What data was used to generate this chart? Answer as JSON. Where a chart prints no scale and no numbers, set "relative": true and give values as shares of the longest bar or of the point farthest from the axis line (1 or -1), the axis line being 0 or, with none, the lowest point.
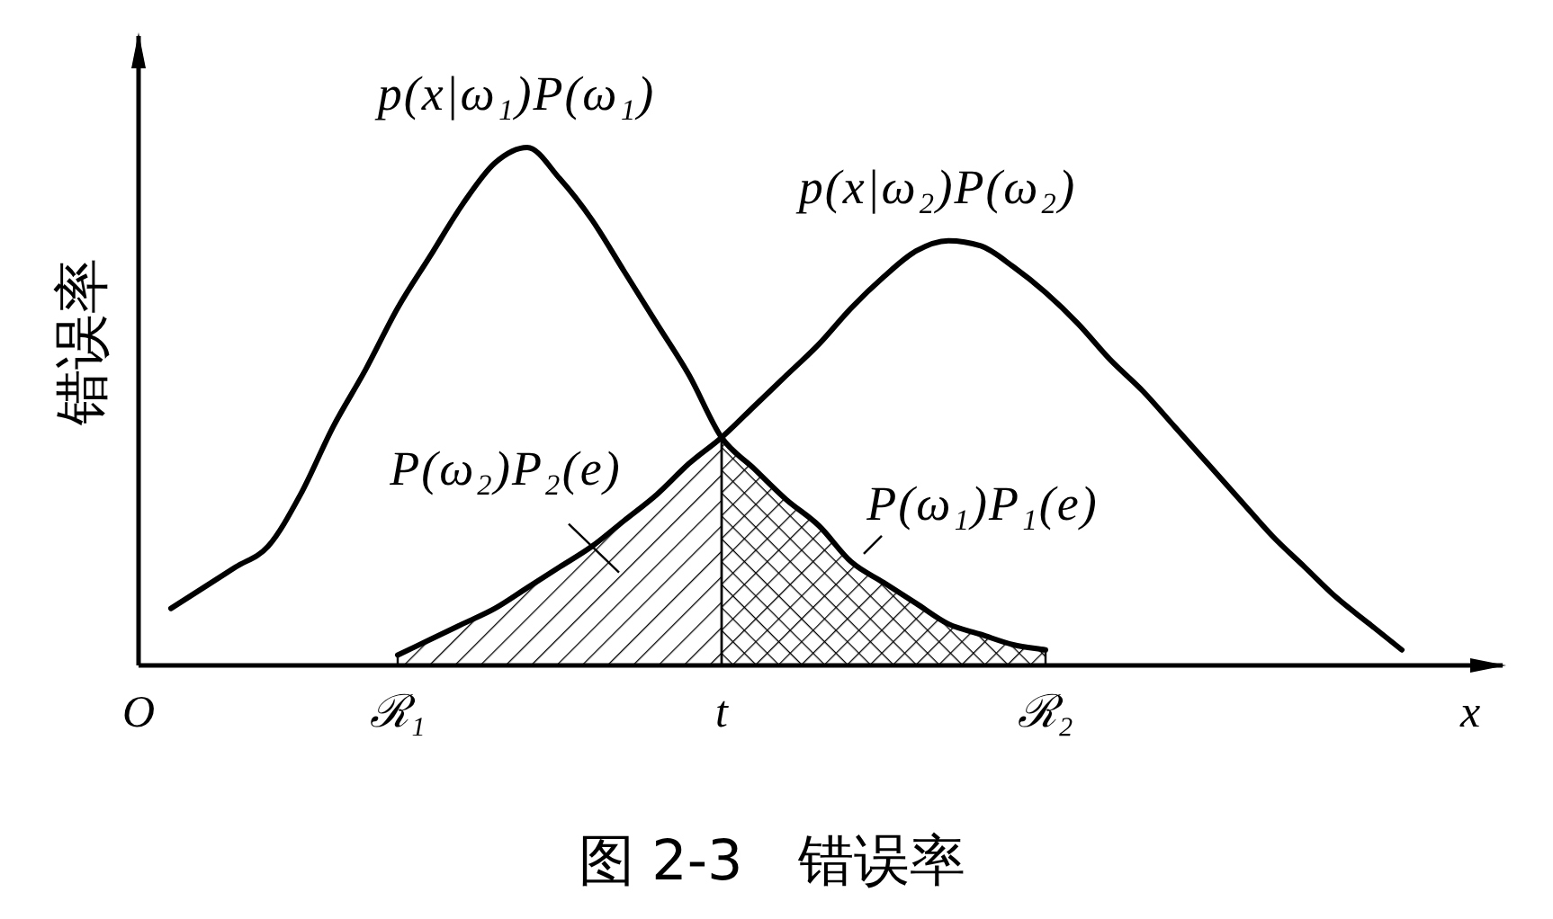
{
  "chart_data": {
    "type": "line",
    "title": "图 2-3　错误率",
    "xlabel": "x",
    "ylabel": "错误率",
    "relative": true,
    "categories": [
      "O",
      null,
      null,
      null,
      null,
      null,
      null,
      null,
      "ℛ₁",
      null,
      null,
      null,
      null,
      null,
      null,
      null,
      null,
      null,
      "t",
      null,
      null,
      null,
      null,
      null,
      null,
      null,
      null,
      null,
      "ℛ₂",
      null,
      null,
      null,
      null,
      null,
      null,
      null,
      null,
      null,
      null,
      null
    ],
    "series": [
      {
        "name": "p(x|ω₁)P(ω₁)",
        "color": "#000000",
        "values": [
          null,
          0.11,
          0.15,
          0.19,
          0.23,
          0.33,
          0.46,
          0.57,
          0.69,
          0.79,
          0.89,
          0.97,
          1,
          0.94,
          0.86,
          0.76,
          0.66,
          0.56,
          0.44,
          0.38,
          0.32,
          0.27,
          0.2,
          0.16,
          0.12,
          0.08,
          0.06,
          0.04,
          0.03,
          null,
          null,
          null,
          null,
          null,
          null,
          null,
          null,
          null,
          null,
          null
        ]
      },
      {
        "name": "p(x|ω₂)P(ω₂)",
        "color": "#000000",
        "values": [
          null,
          null,
          null,
          null,
          null,
          null,
          null,
          null,
          0.02,
          0.05,
          0.08,
          0.11,
          0.15,
          0.19,
          0.23,
          0.28,
          0.33,
          0.39,
          0.44,
          0.5,
          0.56,
          0.62,
          0.69,
          0.75,
          0.8,
          0.82,
          0.81,
          0.77,
          0.72,
          0.66,
          0.59,
          0.53,
          0.46,
          0.39,
          0.32,
          0.25,
          0.19,
          0.13,
          0.08,
          0.03
        ]
      },
      {
        "name": "P(ω₂)P₂(e)",
        "type": "area",
        "color": "#000000",
        "values": [
          null,
          null,
          null,
          null,
          null,
          null,
          null,
          null,
          0.02,
          0.05,
          0.08,
          0.11,
          0.15,
          0.19,
          0.23,
          0.28,
          0.33,
          0.39,
          0.44,
          null,
          null,
          null,
          null,
          null,
          null,
          null,
          null,
          null,
          null,
          null,
          null,
          null,
          null,
          null,
          null,
          null,
          null,
          null,
          null,
          null
        ]
      },
      {
        "name": "P(ω₁)P₁(e)",
        "type": "area",
        "color": "#000000",
        "values": [
          null,
          null,
          null,
          null,
          null,
          null,
          null,
          null,
          null,
          null,
          null,
          null,
          null,
          null,
          null,
          null,
          null,
          null,
          0.44,
          0.38,
          0.32,
          0.27,
          0.2,
          0.16,
          0.12,
          0.08,
          0.06,
          0.04,
          0.03,
          null,
          null,
          null,
          null,
          null,
          null,
          null,
          null,
          null,
          null,
          null
        ]
      }
    ]
  }
}
